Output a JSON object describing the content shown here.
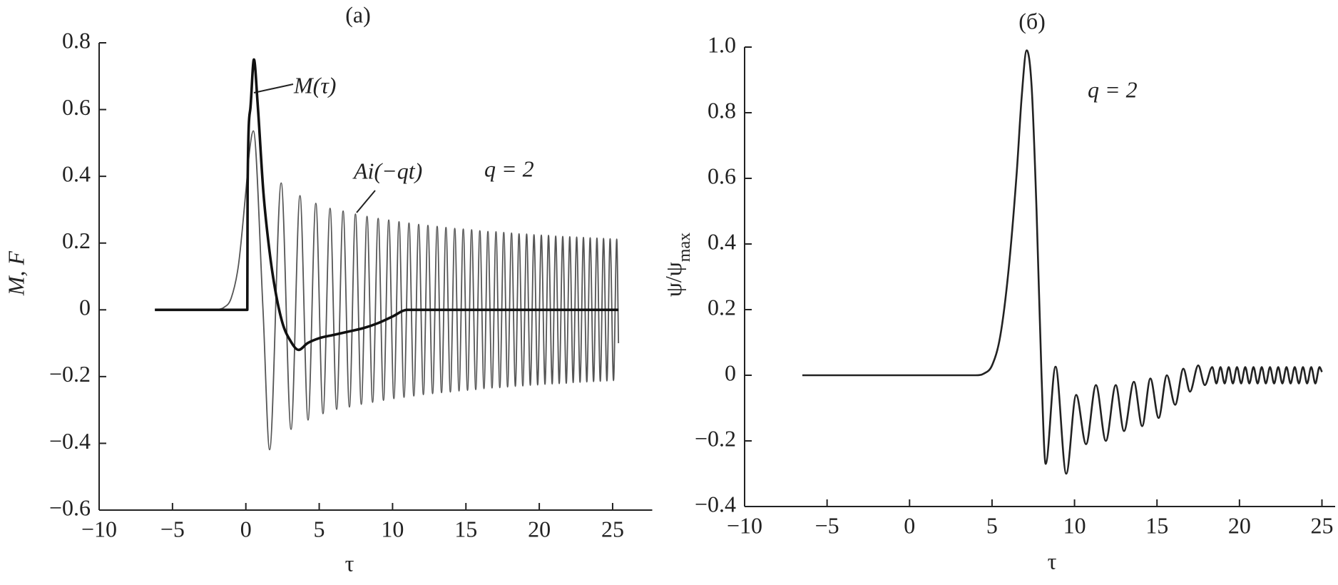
{
  "chart_data": [
    {
      "type": "line",
      "title": "(a)",
      "ylabel": "M, F",
      "xlabel": "τ",
      "annotations": [
        "q = 2"
      ],
      "xlim": [
        -10,
        27.7
      ],
      "ylim": [
        -0.6,
        0.8
      ],
      "xticks": [
        {
          "value": -10,
          "label": "−10"
        },
        {
          "value": -5,
          "label": "−5"
        },
        0,
        5,
        10,
        15,
        20,
        25
      ],
      "yticks": [
        {
          "value": -0.6,
          "label": "−0.6"
        },
        {
          "value": -0.4,
          "label": "−0.4"
        },
        {
          "value": -0.2,
          "label": "−0.2"
        },
        0,
        0.2,
        0.4,
        0.6,
        0.8
      ],
      "series": [
        {
          "name": "M(τ)",
          "color": "#111111",
          "x": [
            -6.2,
            0.1,
            0.12,
            0.3,
            0.55,
            0.8,
            1.2,
            1.6,
            2.0,
            2.5,
            3.0,
            3.6,
            4.2,
            5.0,
            6,
            7,
            8,
            9,
            10,
            11,
            25.4
          ],
          "values": [
            0,
            0,
            0.37,
            0.6,
            0.75,
            0.62,
            0.35,
            0.18,
            0.06,
            -0.04,
            -0.09,
            -0.12,
            -0.1,
            -0.085,
            -0.075,
            -0.065,
            -0.055,
            -0.04,
            -0.02,
            0,
            0
          ]
        },
        {
          "name": "Ai(−qt)",
          "color": "#555555",
          "x": [
            -6.2,
            -3,
            -2,
            -1.5,
            -1,
            -0.5,
            0,
            0.25,
            0.51,
            1.17,
            1.62,
            2.41,
            3.08,
            3.69,
            4.24,
            4.77,
            5.26,
            5.74,
            6.19,
            6.63,
            7.06,
            7.47,
            7.87,
            8.26,
            8.64,
            9.02,
            9.38,
            9.74,
            10.09,
            10.44,
            10.78,
            11.12,
            11.45,
            11.78,
            12.1,
            12.41,
            12.73,
            13.04,
            13.34,
            13.64,
            13.94,
            14.24,
            14.53,
            14.82,
            15.11,
            15.39,
            15.67,
            15.95,
            16.23,
            16.5,
            16.78,
            17.05,
            17.31,
            17.58,
            17.84,
            18.11,
            18.37,
            18.62,
            18.88,
            19.14,
            19.39,
            19.64,
            19.89,
            20.14,
            20.39,
            20.63,
            20.88,
            21.12,
            21.36,
            21.6,
            21.84,
            22.08,
            22.31,
            22.55,
            22.78,
            23.01,
            23.24,
            23.47,
            23.7,
            23.93,
            24.16,
            24.38,
            24.61,
            24.83,
            25.06,
            25.28,
            25.4
          ],
          "values": [
            0,
            0,
            0.001,
            0.007,
            0.035,
            0.135,
            0.355,
            0.476,
            0.536,
            0,
            -0.419,
            0.38,
            -0.358,
            0.342,
            -0.33,
            0.319,
            -0.311,
            0.304,
            -0.298,
            0.296,
            -0.291,
            0.287,
            -0.283,
            0.28,
            -0.277,
            0.274,
            -0.271,
            0.269,
            -0.266,
            0.264,
            -0.262,
            0.26,
            -0.258,
            0.256,
            -0.254,
            0.253,
            -0.251,
            0.25,
            -0.248,
            0.247,
            -0.246,
            0.244,
            -0.243,
            0.242,
            -0.241,
            0.24,
            -0.239,
            0.237,
            -0.236,
            0.235,
            -0.234,
            0.234,
            -0.233,
            0.232,
            -0.231,
            0.23,
            -0.229,
            0.228,
            -0.228,
            0.227,
            -0.226,
            0.225,
            -0.225,
            0.224,
            -0.223,
            0.223,
            -0.222,
            0.221,
            -0.221,
            0.22,
            -0.22,
            0.219,
            -0.218,
            0.218,
            -0.217,
            0.217,
            -0.216,
            0.216,
            -0.215,
            0.215,
            -0.214,
            0.214,
            -0.213,
            0.213,
            -0.212,
            0.212,
            -0.1
          ]
        }
      ]
    },
    {
      "type": "line",
      "title": "(б)",
      "ylabel": "ψ/ψ",
      "ylabel_sub": "max",
      "xlabel": "τ",
      "annotations": [
        "q = 2"
      ],
      "xlim": [
        -10,
        25.8
      ],
      "ylim": [
        -0.4,
        1.0
      ],
      "xticks": [
        {
          "value": -10,
          "label": "−10"
        },
        {
          "value": -5,
          "label": "−5"
        },
        0,
        5,
        10,
        15,
        20,
        25
      ],
      "yticks": [
        {
          "value": -0.4,
          "label": "−0.4"
        },
        {
          "value": -0.2,
          "label": "−0.2"
        },
        0,
        0.2,
        0.4,
        0.6,
        0.8,
        {
          "value": 1,
          "label": "1.0"
        }
      ],
      "series": [
        {
          "color": "#222222",
          "x": [
            -6.5,
            4.0,
            4.5,
            5.0,
            5.5,
            6.0,
            6.5,
            6.8,
            7.1,
            7.4,
            7.7,
            8.0,
            8.25,
            8.85,
            9.5,
            10.1,
            10.7,
            11.3,
            11.9,
            12.5,
            13.0,
            13.6,
            14.1,
            14.6,
            15.1,
            15.6,
            16.1,
            16.6,
            17.0,
            17.5,
            17.9,
            18.35,
            18.6,
            18.85,
            19.1,
            19.35,
            19.6,
            19.85,
            20.1,
            20.35,
            20.6,
            20.85,
            21.1,
            21.35,
            21.6,
            21.85,
            22.1,
            22.35,
            22.6,
            22.85,
            23.1,
            23.35,
            23.6,
            23.85,
            24.1,
            24.35,
            24.6,
            24.85,
            25.0
          ],
          "values": [
            0,
            0,
            0.005,
            0.03,
            0.12,
            0.32,
            0.62,
            0.85,
            0.99,
            0.88,
            0.5,
            0,
            -0.27,
            0.026,
            -0.3,
            -0.06,
            -0.21,
            -0.03,
            -0.2,
            -0.03,
            -0.17,
            -0.02,
            -0.155,
            -0.01,
            -0.13,
            0,
            -0.09,
            0.02,
            -0.05,
            0.03,
            -0.03,
            0.025,
            -0.025,
            0.025,
            -0.025,
            0.025,
            -0.025,
            0.025,
            -0.025,
            0.025,
            -0.025,
            0.025,
            -0.025,
            0.025,
            -0.025,
            0.025,
            -0.025,
            0.025,
            -0.025,
            0.025,
            -0.025,
            0.025,
            -0.025,
            0.025,
            -0.025,
            0.025,
            -0.025,
            0.025,
            0.01
          ]
        }
      ]
    }
  ]
}
